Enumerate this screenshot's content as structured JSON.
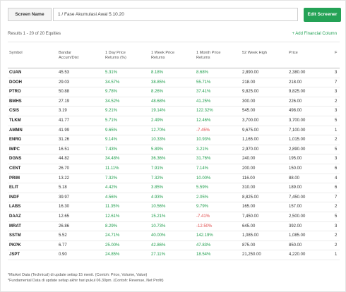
{
  "toolbar": {
    "screen_label": "Screen Name",
    "screen_value": "1 / Fase Akumulasi Awal 5.10.20",
    "edit_button": "Edit Screener"
  },
  "results_text": "Results 1 - 20 of 20 Equities",
  "add_financial": "+ Add Financial Column",
  "columns": [
    [
      "Symbol"
    ],
    [
      "Bandar",
      "Accum/Dist"
    ],
    [
      "1 Day Price",
      "Returns (%)"
    ],
    [
      "1 Week Price",
      "Returns"
    ],
    [
      "1 Month Price",
      "Returns"
    ],
    [
      "52 Week High"
    ],
    [
      "Price"
    ],
    [
      "F"
    ]
  ],
  "rows": [
    {
      "symbol": "CUAN",
      "bandar": "45.53",
      "day": "5.31%",
      "week": "8.18%",
      "month": "8.68%",
      "high": "2,890.00",
      "price": "2,380.00",
      "f": "3"
    },
    {
      "symbol": "DOOH",
      "bandar": "29.03",
      "day": "34.57%",
      "week": "38.85%",
      "month": "55.71%",
      "high": "218.00",
      "price": "218.00",
      "f": "7"
    },
    {
      "symbol": "PTRO",
      "bandar": "50.88",
      "day": "9.78%",
      "week": "8.26%",
      "month": "37.41%",
      "high": "9,825.00",
      "price": "9,825.00",
      "f": "3"
    },
    {
      "symbol": "BMHS",
      "bandar": "27.19",
      "day": "34.52%",
      "week": "48.68%",
      "month": "41.25%",
      "high": "300.00",
      "price": "226.00",
      "f": "2"
    },
    {
      "symbol": "CSIS",
      "bandar": "3.19",
      "day": "9.21%",
      "week": "19.14%",
      "month": "122.32%",
      "high": "545.00",
      "price": "498.00",
      "f": "3"
    },
    {
      "symbol": "TLKM",
      "bandar": "41.77",
      "day": "5.71%",
      "week": "2.49%",
      "month": "12.46%",
      "high": "3,700.00",
      "price": "3,700.00",
      "f": "5"
    },
    {
      "symbol": "AMMN",
      "bandar": "41.99",
      "day": "9.65%",
      "week": "12.70%",
      "month": "-7.45%",
      "high": "9,675.00",
      "price": "7,100.00",
      "f": "1"
    },
    {
      "symbol": "ENRG",
      "bandar": "31.26",
      "day": "9.14%",
      "week": "10.33%",
      "month": "10.93%",
      "high": "1,165.00",
      "price": "1,015.00",
      "f": "2"
    },
    {
      "symbol": "IMPC",
      "bandar": "16.51",
      "day": "7.43%",
      "week": "5.89%",
      "month": "3.21%",
      "high": "2,970.00",
      "price": "2,890.00",
      "f": "5"
    },
    {
      "symbol": "DGNS",
      "bandar": "44.82",
      "day": "34.48%",
      "week": "36.36%",
      "month": "31.76%",
      "high": "240.00",
      "price": "195.00",
      "f": "3"
    },
    {
      "symbol": "CENT",
      "bandar": "26.70",
      "day": "11.11%",
      "week": "7.91%",
      "month": "7.14%",
      "high": "200.00",
      "price": "150.00",
      "f": "6"
    },
    {
      "symbol": "PRIM",
      "bandar": "13.22",
      "day": "7.32%",
      "week": "7.32%",
      "month": "10.00%",
      "high": "116.00",
      "price": "88.00",
      "f": "4"
    },
    {
      "symbol": "ELIT",
      "bandar": "5.18",
      "day": "4.42%",
      "week": "3.85%",
      "month": "5.59%",
      "high": "310.00",
      "price": "189.00",
      "f": "6"
    },
    {
      "symbol": "INDF",
      "bandar": "39.97",
      "day": "4.56%",
      "week": "4.93%",
      "month": "2.05%",
      "high": "8,825.00",
      "price": "7,450.00",
      "f": "7"
    },
    {
      "symbol": "LABS",
      "bandar": "16.30",
      "day": "11.35%",
      "week": "10.56%",
      "month": "9.79%",
      "high": "165.00",
      "price": "157.00",
      "f": "2"
    },
    {
      "symbol": "DAAZ",
      "bandar": "12.65",
      "day": "12.61%",
      "week": "15.21%",
      "month": "-7.41%",
      "high": "7,450.00",
      "price": "2,500.00",
      "f": "5"
    },
    {
      "symbol": "MRAT",
      "bandar": "26.86",
      "day": "8.29%",
      "week": "10.73%",
      "month": "-12.50%",
      "high": "645.00",
      "price": "392.00",
      "f": "3"
    },
    {
      "symbol": "SSTM",
      "bandar": "5.52",
      "day": "24.71%",
      "week": "40.00%",
      "month": "142.19%",
      "high": "1,085.00",
      "price": "1,085.00",
      "f": "2"
    },
    {
      "symbol": "PKPK",
      "bandar": "6.77",
      "day": "25.00%",
      "week": "42.86%",
      "month": "47.83%",
      "high": "875.00",
      "price": "850.00",
      "f": "2"
    },
    {
      "symbol": "JSPT",
      "bandar": "0.90",
      "day": "24.85%",
      "week": "27.11%",
      "month": "18.54%",
      "high": "21,250.00",
      "price": "4,220.00",
      "f": "1"
    }
  ],
  "footnotes": [
    "*Market Data (Technical) di update setiap 15 menit. (Contoh: Price, Volume, Value)",
    "*Fundamental Data di update setiap akhir hari pukul 06.30pm. (Contoh: Revenue, Net Profit)"
  ],
  "colors": {
    "accent": "#24a256",
    "positive": "#1f9d4c",
    "negative": "#e04a4a"
  }
}
